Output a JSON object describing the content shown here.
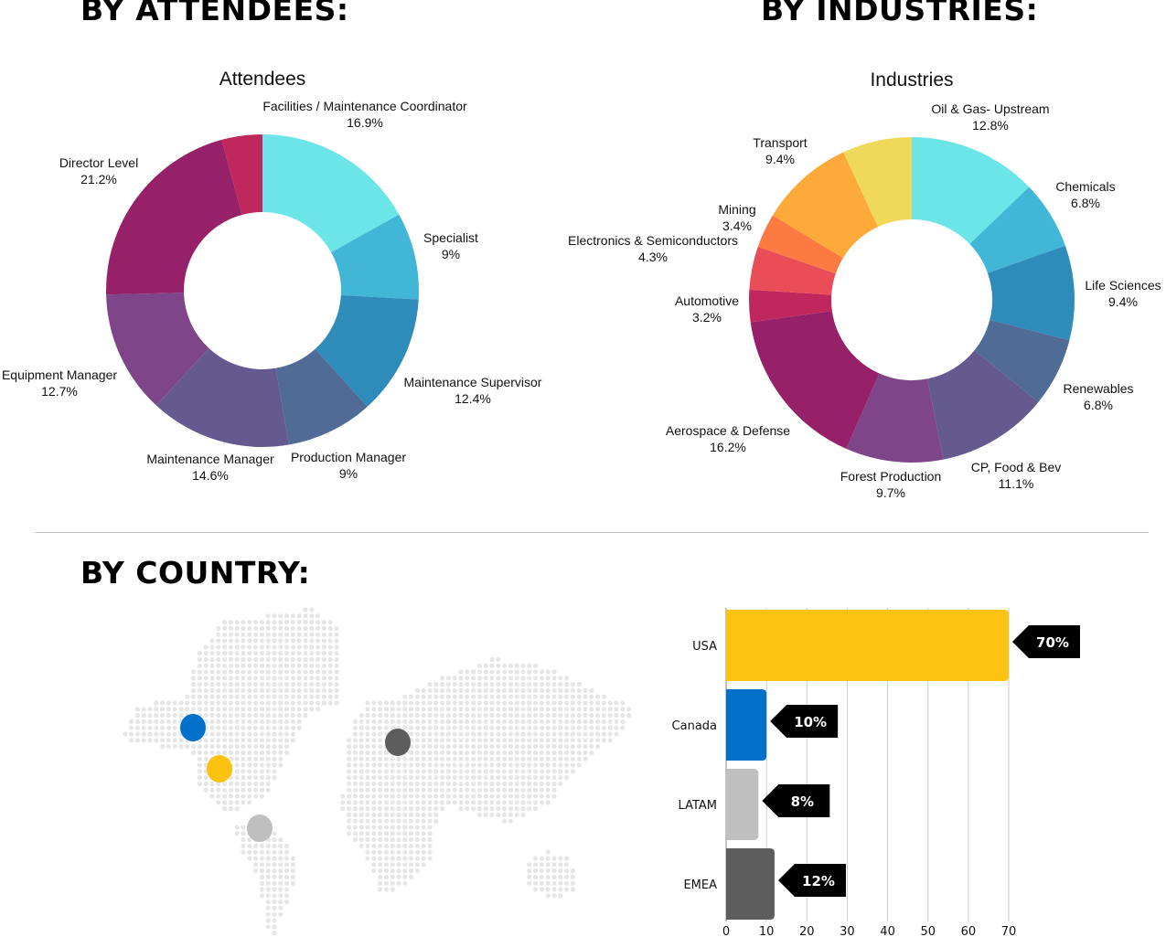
{
  "headings": {
    "attendees": "BY ATTENDEES:",
    "industries": "BY INDUSTRIES:",
    "country": "BY COUNTRY:"
  },
  "chart_data": [
    {
      "type": "pie",
      "donut": true,
      "title": "Attendees",
      "slices": [
        {
          "label": "Facilities / Maintenance Coordinator",
          "value": 16.9,
          "text": "16.9%",
          "color": "#6ce5e8"
        },
        {
          "label": "Specialist",
          "value": 9,
          "text": "9%",
          "color": "#41b6d6"
        },
        {
          "label": "Maintenance Supervisor",
          "value": 12.4,
          "text": "12.4%",
          "color": "#2e8bba"
        },
        {
          "label": "Production Manager",
          "value": 9,
          "text": "9%",
          "color": "#4f6b96"
        },
        {
          "label": "Maintenance Manager",
          "value": 14.6,
          "text": "14.6%",
          "color": "#655a8f"
        },
        {
          "label": "Equipment Manager",
          "value": 12.7,
          "text": "12.7%",
          "color": "#7e4688"
        },
        {
          "label": "Director Level",
          "value": 21.2,
          "text": "21.2%",
          "color": "#962169"
        },
        {
          "label": "",
          "value": 4.2,
          "text": "",
          "color": "#c0275d"
        }
      ]
    },
    {
      "type": "pie",
      "donut": true,
      "title": "Industries",
      "slices": [
        {
          "label": "Oil & Gas- Upstream",
          "value": 12.8,
          "text": "12.8%",
          "color": "#6ce5e8"
        },
        {
          "label": "Chemicals",
          "value": 6.8,
          "text": "6.8%",
          "color": "#41b6d6"
        },
        {
          "label": "Life Sciences",
          "value": 9.4,
          "text": "9.4%",
          "color": "#2e8bba"
        },
        {
          "label": "Renewables",
          "value": 6.8,
          "text": "6.8%",
          "color": "#4f6b96"
        },
        {
          "label": "CP, Food & Bev",
          "value": 11.1,
          "text": "11.1%",
          "color": "#655a8f"
        },
        {
          "label": "Forest Production",
          "value": 9.7,
          "text": "9.7%",
          "color": "#7e4688"
        },
        {
          "label": "Aerospace & Defense",
          "value": 16.2,
          "text": "16.2%",
          "color": "#962169"
        },
        {
          "label": "Automotive",
          "value": 3.2,
          "text": "3.2%",
          "color": "#c0275d"
        },
        {
          "label": "Electronics & Semiconductors",
          "value": 4.3,
          "text": "4.3%",
          "color": "#e84d58"
        },
        {
          "label": "Mining",
          "value": 3.4,
          "text": "3.4%",
          "color": "#fd7a43"
        },
        {
          "label": "Transport",
          "value": 9.4,
          "text": "9.4%",
          "color": "#fdaa3b"
        },
        {
          "label": "",
          "value": 6.9,
          "text": "",
          "color": "#efd95b"
        }
      ]
    },
    {
      "type": "bar",
      "orientation": "horizontal",
      "categories": [
        "USA",
        "Canada",
        "LATAM",
        "EMEA"
      ],
      "values": [
        70,
        10,
        8,
        12
      ],
      "data_labels": [
        "70%",
        "10%",
        "8%",
        "12%"
      ],
      "colors": [
        "#fec211",
        "#0070c9",
        "#bfbfbf",
        "#5d5d5d"
      ],
      "xlim": [
        0,
        70
      ],
      "xticks": [
        0,
        10,
        20,
        30,
        40,
        50,
        60,
        70
      ],
      "grid": true
    }
  ],
  "map": {
    "dot_color": "#e6e6e6",
    "markers": [
      {
        "region": "Canada",
        "color": "#0070c9"
      },
      {
        "region": "USA",
        "color": "#fec211"
      },
      {
        "region": "LATAM",
        "color": "#bfbfbf"
      },
      {
        "region": "EMEA",
        "color": "#5d5d5d"
      }
    ]
  }
}
